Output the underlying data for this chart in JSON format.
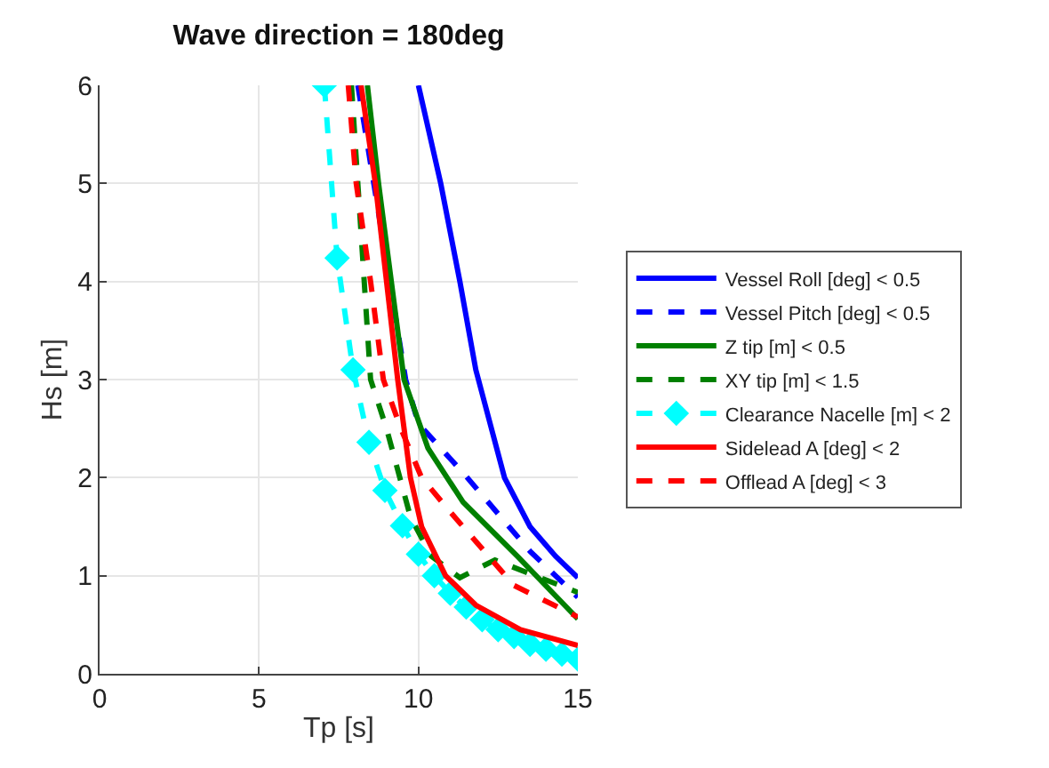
{
  "chart_data": {
    "type": "line",
    "title": "Wave direction = 180deg",
    "xlabel": "Tp [s]",
    "ylabel": "Hs [m]",
    "xlim": [
      0,
      15
    ],
    "xticks": [
      0,
      5,
      10,
      15
    ],
    "ylim": [
      0,
      6
    ],
    "yticks": [
      0,
      1,
      2,
      3,
      4,
      5,
      6
    ],
    "grid": true,
    "legend": "right",
    "series": [
      {
        "name": "Vessel Roll [deg] < 0.5",
        "color": "#0000ff",
        "line_style": "solid",
        "marker": "none",
        "x": [
          10.0,
          10.7,
          11.3,
          11.8,
          12.7,
          13.5,
          14.3,
          15
        ],
        "values": [
          6,
          5,
          4,
          3.1,
          2,
          1.5,
          1.2,
          0.98
        ]
      },
      {
        "name": "Vessel Pitch [deg] < 0.5",
        "color": "#0000ff",
        "line_style": "dashed",
        "marker": "none",
        "x": [
          8.1,
          8.6,
          9.6,
          10.0,
          11.4,
          13.5,
          15
        ],
        "values": [
          6,
          5,
          3,
          2.55,
          2.05,
          1.25,
          0.78
        ]
      },
      {
        "name": "Z tip [m] < 0.5",
        "color": "#008000",
        "line_style": "solid",
        "marker": "none",
        "x": [
          8.4,
          8.75,
          9.15,
          9.55,
          10.3,
          11.4,
          13.1,
          15
        ],
        "values": [
          6,
          5,
          4,
          3,
          2.3,
          1.75,
          1.2,
          0.56
        ]
      },
      {
        "name": "XY tip [m] < 1.5",
        "color": "#008000",
        "line_style": "dashed",
        "marker": "none",
        "x": [
          7.9,
          8.1,
          8.3,
          8.5,
          9.0,
          9.75,
          10.4,
          11.3,
          12.4,
          15
        ],
        "values": [
          6,
          5,
          4,
          3,
          2.5,
          1.6,
          1.2,
          0.98,
          1.16,
          0.83
        ]
      },
      {
        "name": "Clearance Nacelle [m] < 2",
        "color": "#00ffff",
        "line_style": "dashed",
        "marker": "diamond",
        "x": [
          7.05,
          7.45,
          7.95,
          8.45,
          8.95,
          9.5,
          10.0,
          10.5,
          11.0,
          11.5,
          12.0,
          12.5,
          13.0,
          13.5,
          14.0,
          14.5,
          15
        ],
        "values": [
          6,
          4.24,
          3.1,
          2.36,
          1.87,
          1.51,
          1.22,
          1.0,
          0.82,
          0.68,
          0.55,
          0.45,
          0.38,
          0.3,
          0.25,
          0.2,
          0.15
        ]
      },
      {
        "name": "Sidelead A [deg] < 2",
        "color": "#ff0000",
        "line_style": "solid",
        "marker": "none",
        "x": [
          8.2,
          8.65,
          9.0,
          9.35,
          9.75,
          10.1,
          10.85,
          11.8,
          13.2,
          15
        ],
        "values": [
          6,
          5,
          4,
          3,
          2,
          1.5,
          1,
          0.7,
          0.45,
          0.29
        ]
      },
      {
        "name": "Offlead A [deg] < 3",
        "color": "#ff0000",
        "line_style": "dashed",
        "marker": "none",
        "x": [
          7.8,
          8.05,
          8.5,
          8.9,
          9.45,
          10.1,
          11.0,
          13.0,
          15
        ],
        "values": [
          6,
          5,
          4,
          3,
          2.5,
          2,
          1.65,
          0.9,
          0.58
        ]
      }
    ]
  }
}
